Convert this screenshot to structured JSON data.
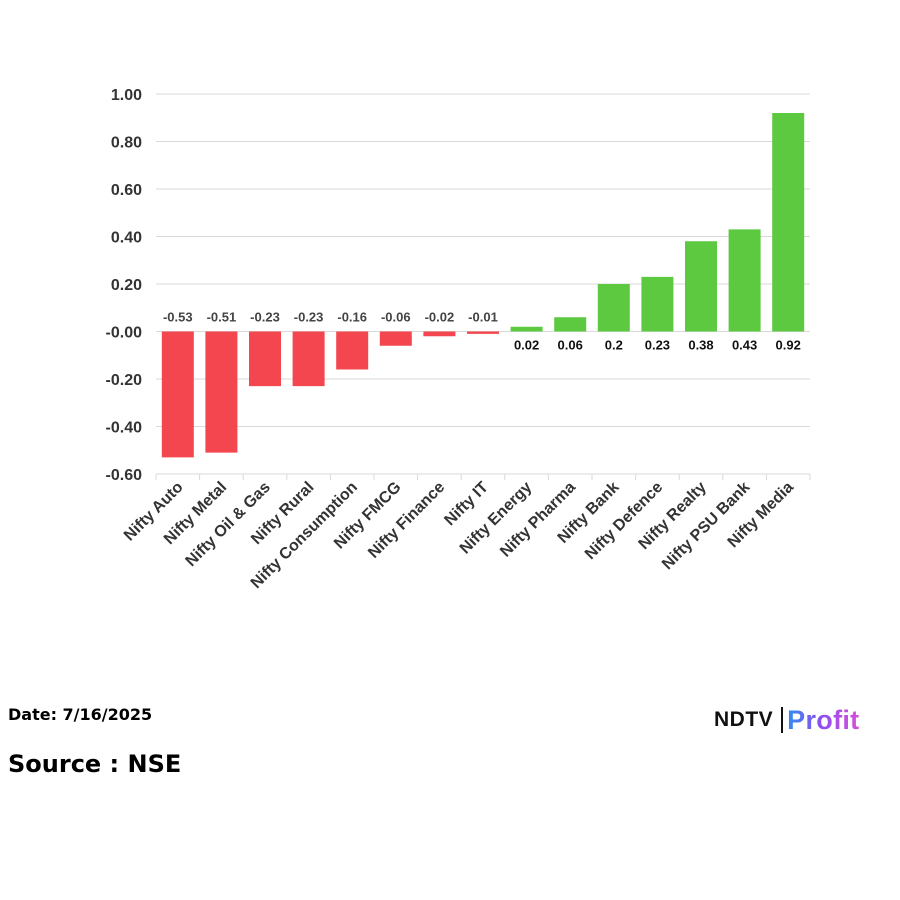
{
  "chart_data": {
    "type": "bar",
    "title": "",
    "xlabel": "",
    "ylabel": "",
    "ylim": [
      -0.6,
      1.0
    ],
    "yticks": [
      1.0,
      0.8,
      0.6,
      0.4,
      0.2,
      0.0,
      -0.2,
      -0.4,
      -0.6
    ],
    "ytick_labels": [
      "1.00",
      "0.80",
      "0.60",
      "0.40",
      "0.20",
      "-0.00",
      "-0.20",
      "-0.40",
      "-0.60"
    ],
    "grid": true,
    "categories": [
      "Nifty Auto",
      "Nifty Metal",
      "Nifty Oil & Gas",
      "Nifty Rural",
      "Nifty Consumption",
      "Nifty FMCG",
      "Nifty Finance",
      "Nifty IT",
      "Nifty Energy",
      "Nifty Pharma",
      "Nifty Bank",
      "Nifty Defence",
      "Nifty Realty",
      "Nifty PSU Bank",
      "Nifty Media"
    ],
    "values": [
      -0.53,
      -0.51,
      -0.23,
      -0.23,
      -0.16,
      -0.06,
      -0.02,
      -0.01,
      0.02,
      0.06,
      0.2,
      0.23,
      0.38,
      0.43,
      0.92
    ],
    "data_labels": [
      "-0.53",
      "-0.51",
      "-0.23",
      "-0.23",
      "-0.16",
      "-0.06",
      "-0.02",
      "-0.01",
      "0.02",
      "0.06",
      "0.2",
      "0.23",
      "0.38",
      "0.43",
      "0.92"
    ],
    "colors": {
      "negative": "#f4464f",
      "positive": "#5cc940"
    }
  },
  "footer": {
    "date": "Date: 7/16/2025",
    "source": "Source : NSE"
  },
  "logo": {
    "brand": "NDTV",
    "product": "Profit"
  }
}
